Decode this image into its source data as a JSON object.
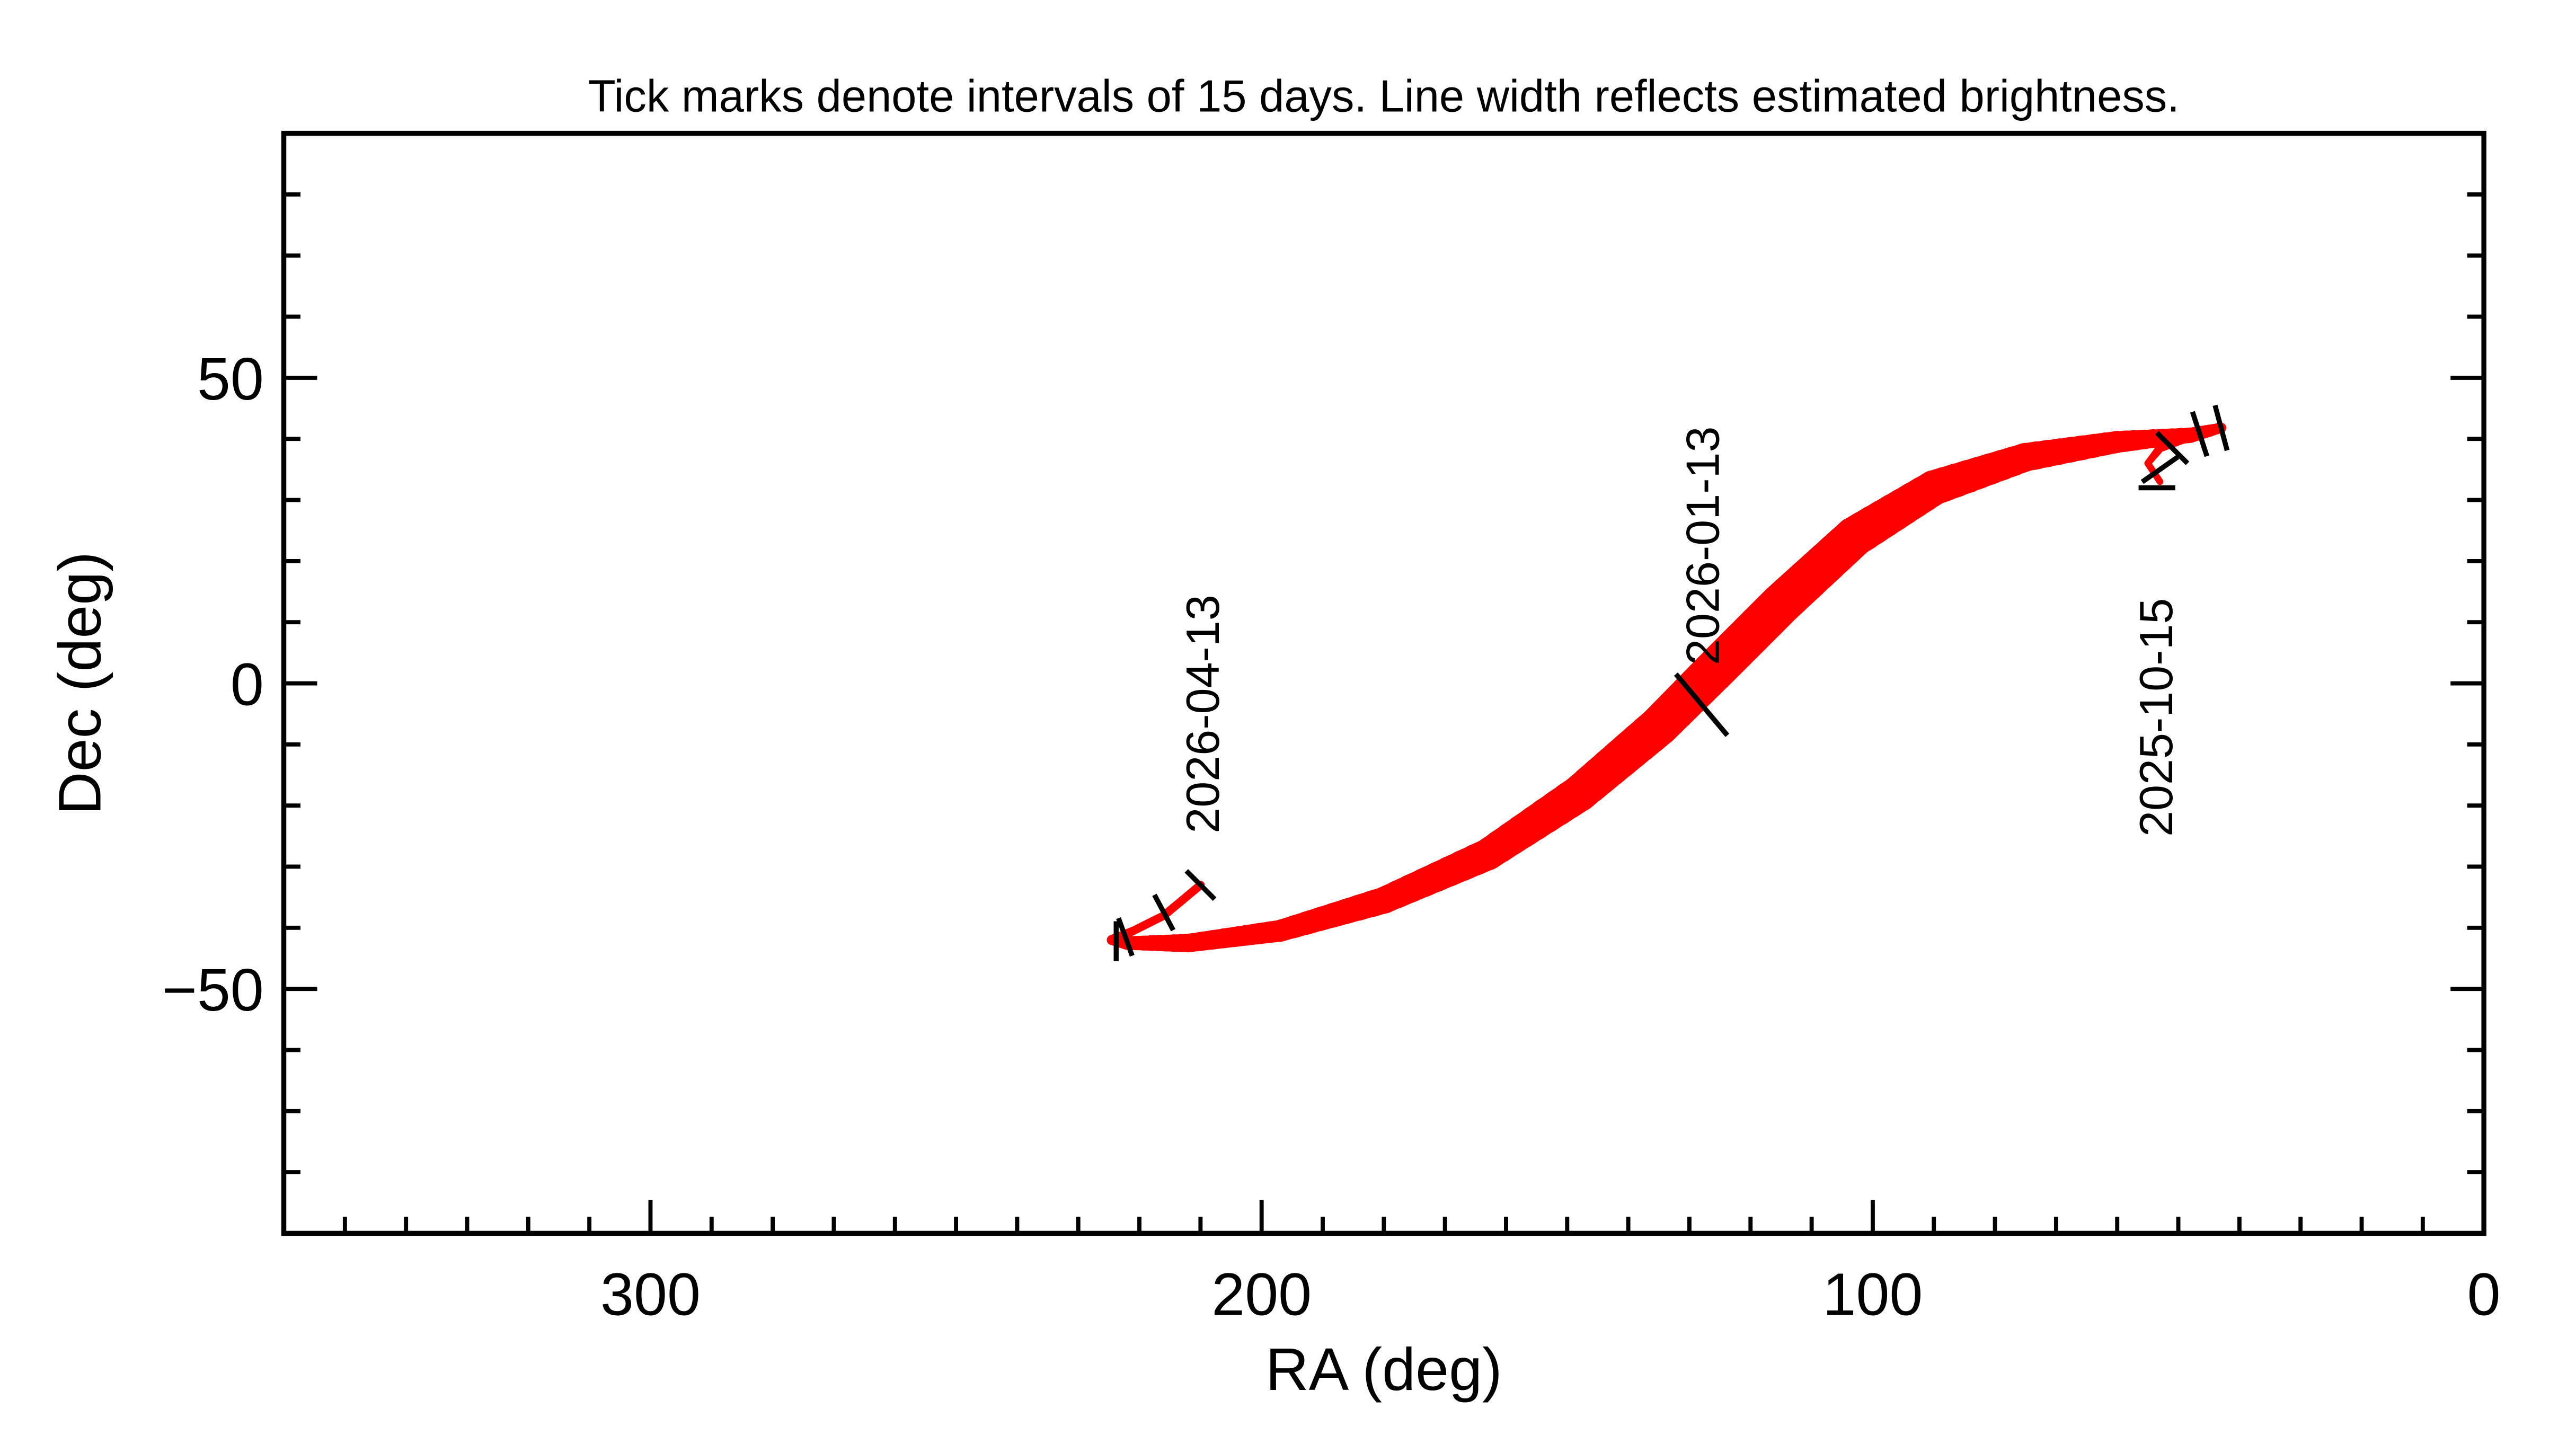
{
  "chart_data": {
    "type": "line",
    "title": "Tick marks denote intervals of 15 days.  Line width reflects estimated brightness.",
    "xlabel": "RA (deg)",
    "ylabel": "Dec (deg)",
    "xlim": [
      360,
      0
    ],
    "ylim": [
      -90,
      90
    ],
    "xticks": [
      300,
      200,
      100,
      0
    ],
    "xtick_labels": [
      "300",
      "200",
      "100",
      "0"
    ],
    "yticks": [
      50,
      0,
      -50
    ],
    "ytick_labels": [
      "50",
      "0",
      "−50"
    ],
    "grid": false,
    "line_color": "#ff0000",
    "tick_color": "#000000",
    "track": [
      {
        "ra": 53,
        "dec": 33,
        "w": 4
      },
      {
        "ra": 55,
        "dec": 36,
        "w": 4
      },
      {
        "ra": 53,
        "dec": 38.5,
        "w": 5
      },
      {
        "ra": 48,
        "dec": 40.5,
        "w": 6
      },
      {
        "ra": 43,
        "dec": 41.8,
        "w": 6
      },
      {
        "ra": 48,
        "dec": 40.6,
        "w": 9
      },
      {
        "ra": 60,
        "dec": 39.5,
        "w": 13
      },
      {
        "ra": 75,
        "dec": 37,
        "w": 17
      },
      {
        "ra": 90,
        "dec": 32,
        "w": 21
      },
      {
        "ra": 103,
        "dec": 24,
        "w": 24
      },
      {
        "ra": 115,
        "dec": 13,
        "w": 25
      },
      {
        "ra": 125,
        "dec": 3,
        "w": 25
      },
      {
        "ra": 135,
        "dec": -7,
        "w": 24
      },
      {
        "ra": 148,
        "dec": -18,
        "w": 22
      },
      {
        "ra": 163,
        "dec": -28,
        "w": 19
      },
      {
        "ra": 180,
        "dec": -35.5,
        "w": 16
      },
      {
        "ra": 197,
        "dec": -40.5,
        "w": 13
      },
      {
        "ra": 212,
        "dec": -42.5,
        "w": 11
      },
      {
        "ra": 222,
        "dec": -42.5,
        "w": 8
      },
      {
        "ra": 224.5,
        "dec": -42,
        "w": 6
      },
      {
        "ra": 221,
        "dec": -40.5,
        "w": 5
      },
      {
        "ra": 216,
        "dec": -38,
        "w": 5
      },
      {
        "ra": 210,
        "dec": -33,
        "w": 5
      }
    ],
    "date_ticks": [
      {
        "ra": 43,
        "dec": 41.8
      },
      {
        "ra": 46.5,
        "dec": 40.8
      },
      {
        "ra": 51,
        "dec": 38.5
      },
      {
        "ra": 53,
        "dec": 35
      },
      {
        "ra": 53.5,
        "dec": 32
      },
      {
        "ra": 128,
        "dec": -3.5
      },
      {
        "ra": 210,
        "dec": -33
      },
      {
        "ra": 216,
        "dec": -37.5
      },
      {
        "ra": 222.3,
        "dec": -41.5
      },
      {
        "ra": 223.8,
        "dec": -42.2
      }
    ],
    "annotations": [
      "2026-04-13",
      "2026-01-13",
      "2025-10-15"
    ]
  }
}
